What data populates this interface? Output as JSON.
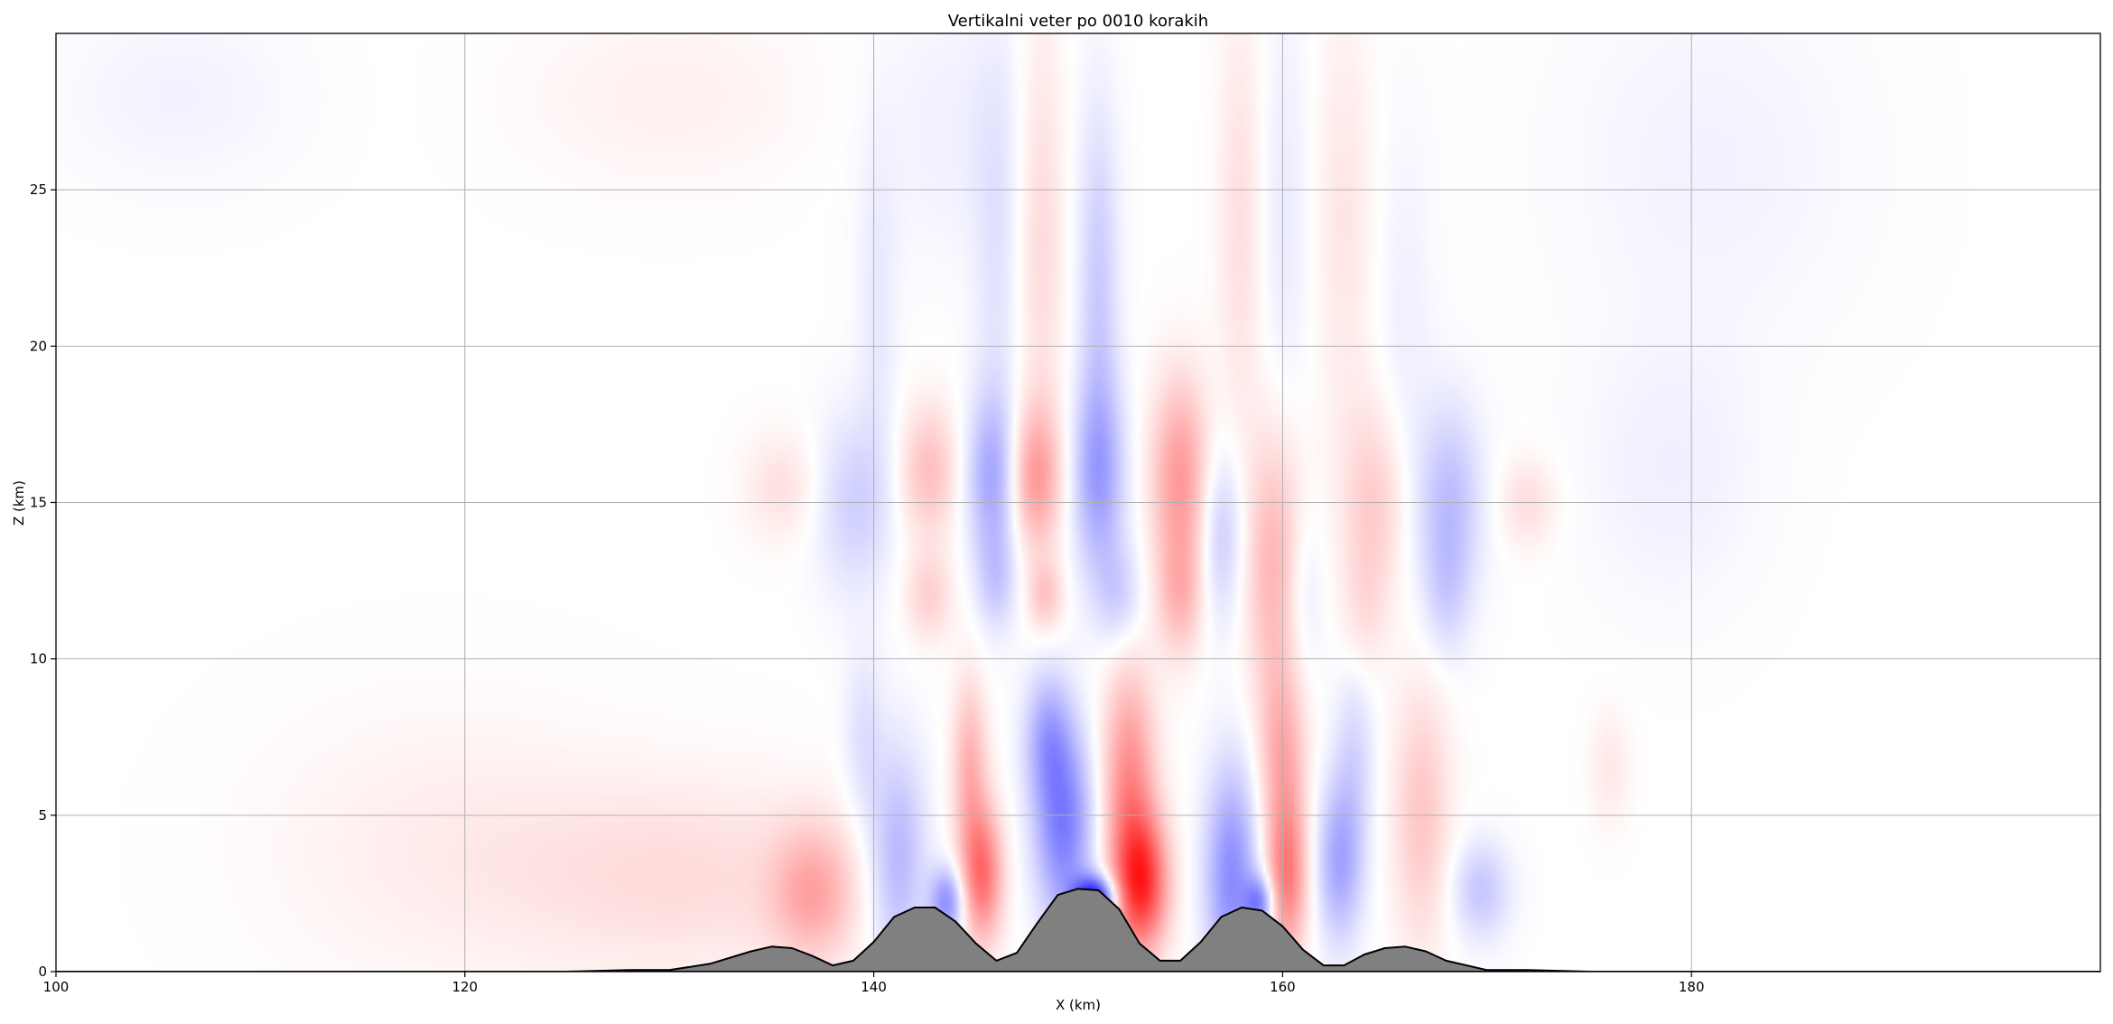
{
  "chart_data": {
    "type": "heatmap",
    "title": "Vertikalni veter po 0010 korakih",
    "xlabel": "X (km)",
    "ylabel": "Z (km)",
    "xlim": [
      100,
      200
    ],
    "ylim": [
      0,
      30
    ],
    "xticks": [
      100,
      120,
      140,
      160,
      180
    ],
    "yticks": [
      0,
      5,
      10,
      15,
      20,
      25
    ],
    "grid": true,
    "colormap": "bwr",
    "colors": {
      "positive": "#ff0000",
      "negative": "#0000ff",
      "neutral": "#ffffff",
      "terrain": "#808080",
      "terrain_edge": "#000000",
      "grid": "#b0b0b0"
    },
    "terrain": {
      "x": [
        100,
        125,
        128,
        130,
        132,
        134,
        135,
        136,
        137,
        138,
        139,
        140,
        141,
        142,
        143,
        144,
        145,
        146,
        147,
        148,
        149,
        150,
        151,
        152,
        153,
        154,
        155,
        156,
        157,
        158,
        159,
        160,
        161,
        162,
        163,
        164,
        165,
        166,
        167,
        168,
        170,
        172,
        175,
        200
      ],
      "z": [
        0,
        0,
        0.05,
        0.05,
        0.25,
        0.65,
        0.8,
        0.75,
        0.5,
        0.2,
        0.35,
        0.95,
        1.75,
        2.05,
        2.05,
        1.6,
        0.9,
        0.35,
        0.6,
        1.55,
        2.45,
        2.65,
        2.6,
        2.0,
        0.9,
        0.35,
        0.35,
        0.95,
        1.75,
        2.05,
        1.95,
        1.45,
        0.7,
        0.2,
        0.2,
        0.55,
        0.75,
        0.8,
        0.65,
        0.35,
        0.05,
        0.05,
        0,
        0
      ]
    },
    "w_field": {
      "units": "relative",
      "features": [
        {
          "x": 150.8,
          "z": 2.3,
          "sx": 0.7,
          "sz": 0.5,
          "w": -0.95
        },
        {
          "x": 153.1,
          "z": 2.8,
          "sx": 0.9,
          "sz": 1.5,
          "w": 0.75
        },
        {
          "x": 152.5,
          "z": 6.0,
          "sx": 0.9,
          "sz": 2.6,
          "w": 0.45
        },
        {
          "x": 149.3,
          "z": 4.6,
          "sx": 1.0,
          "sz": 2.2,
          "w": -0.5
        },
        {
          "x": 148.5,
          "z": 7.5,
          "sx": 0.8,
          "sz": 1.5,
          "w": -0.3
        },
        {
          "x": 145.3,
          "z": 3.1,
          "sx": 0.7,
          "sz": 1.5,
          "w": 0.55
        },
        {
          "x": 144.7,
          "z": 6.5,
          "sx": 0.6,
          "sz": 2.0,
          "w": 0.3
        },
        {
          "x": 143.6,
          "z": 2.2,
          "sx": 0.6,
          "sz": 0.8,
          "w": -0.45
        },
        {
          "x": 141.2,
          "z": 3.6,
          "sx": 1.0,
          "sz": 2.5,
          "w": -0.3
        },
        {
          "x": 137.0,
          "z": 2.5,
          "sx": 1.4,
          "sz": 1.5,
          "w": 0.3
        },
        {
          "x": 131.0,
          "z": 3.0,
          "sx": 6.0,
          "sz": 2.2,
          "w": 0.13
        },
        {
          "x": 119.0,
          "z": 4.0,
          "sx": 6.0,
          "sz": 3.0,
          "w": 0.07
        },
        {
          "x": 157.5,
          "z": 3.0,
          "sx": 0.9,
          "sz": 2.5,
          "w": -0.45
        },
        {
          "x": 158.9,
          "z": 2.2,
          "sx": 0.5,
          "sz": 0.6,
          "w": -0.45
        },
        {
          "x": 160.2,
          "z": 3.0,
          "sx": 0.7,
          "sz": 1.8,
          "w": 0.5
        },
        {
          "x": 160.0,
          "z": 7.0,
          "sx": 0.8,
          "sz": 2.0,
          "w": 0.3
        },
        {
          "x": 162.8,
          "z": 3.5,
          "sx": 0.8,
          "sz": 1.8,
          "w": -0.35
        },
        {
          "x": 163.5,
          "z": 7.0,
          "sx": 0.7,
          "sz": 2.0,
          "w": -0.15
        },
        {
          "x": 166.8,
          "z": 5.0,
          "sx": 1.0,
          "sz": 3.0,
          "w": 0.22
        },
        {
          "x": 169.7,
          "z": 2.6,
          "sx": 1.0,
          "sz": 1.1,
          "w": -0.22
        },
        {
          "x": 176.0,
          "z": 6.5,
          "sx": 0.7,
          "sz": 1.3,
          "w": 0.09
        },
        {
          "x": 139.5,
          "z": 7.5,
          "sx": 0.7,
          "sz": 2.0,
          "w": -0.12
        },
        {
          "x": 147.9,
          "z": 15.8,
          "sx": 0.9,
          "sz": 1.6,
          "w": 0.38
        },
        {
          "x": 148.4,
          "z": 12.0,
          "sx": 0.6,
          "sz": 0.8,
          "w": 0.22
        },
        {
          "x": 145.8,
          "z": 15.8,
          "sx": 0.9,
          "sz": 1.8,
          "w": -0.32
        },
        {
          "x": 146.0,
          "z": 12.5,
          "sx": 0.7,
          "sz": 1.2,
          "w": -0.18
        },
        {
          "x": 151.0,
          "z": 15.8,
          "sx": 0.9,
          "sz": 2.2,
          "w": -0.35
        },
        {
          "x": 151.0,
          "z": 22.0,
          "sx": 0.7,
          "sz": 4.0,
          "w": -0.2
        },
        {
          "x": 152.0,
          "z": 12.0,
          "sx": 0.8,
          "sz": 1.2,
          "w": -0.18
        },
        {
          "x": 155.0,
          "z": 15.8,
          "sx": 1.0,
          "sz": 2.2,
          "w": 0.4
        },
        {
          "x": 155.0,
          "z": 12.0,
          "sx": 0.8,
          "sz": 1.4,
          "w": 0.25
        },
        {
          "x": 157.0,
          "z": 14.0,
          "sx": 0.8,
          "sz": 2.0,
          "w": -0.22
        },
        {
          "x": 159.6,
          "z": 13.0,
          "sx": 1.0,
          "sz": 3.0,
          "w": 0.3
        },
        {
          "x": 161.0,
          "z": 12.0,
          "sx": 0.7,
          "sz": 2.0,
          "w": -0.12
        },
        {
          "x": 164.5,
          "z": 15.0,
          "sx": 1.1,
          "sz": 2.2,
          "w": 0.2
        },
        {
          "x": 164.0,
          "z": 11.5,
          "sx": 0.8,
          "sz": 1.5,
          "w": 0.1
        },
        {
          "x": 168.2,
          "z": 15.0,
          "sx": 1.1,
          "sz": 2.2,
          "w": -0.25
        },
        {
          "x": 168.0,
          "z": 12.0,
          "sx": 0.8,
          "sz": 1.5,
          "w": -0.13
        },
        {
          "x": 142.7,
          "z": 16.0,
          "sx": 1.0,
          "sz": 1.5,
          "w": 0.25
        },
        {
          "x": 142.7,
          "z": 12.0,
          "sx": 0.8,
          "sz": 1.0,
          "w": 0.18
        },
        {
          "x": 139.0,
          "z": 15.0,
          "sx": 1.3,
          "sz": 2.0,
          "w": -0.18
        },
        {
          "x": 135.5,
          "z": 15.5,
          "sx": 1.3,
          "sz": 1.2,
          "w": 0.12
        },
        {
          "x": 172.0,
          "z": 15.0,
          "sx": 1.0,
          "sz": 1.0,
          "w": 0.13
        },
        {
          "x": 179.0,
          "z": 16.0,
          "sx": 3.0,
          "sz": 3.0,
          "w": -0.06
        },
        {
          "x": 148.2,
          "z": 24.0,
          "sx": 0.8,
          "sz": 5.0,
          "w": 0.15
        },
        {
          "x": 146.0,
          "z": 22.0,
          "sx": 0.8,
          "sz": 5.0,
          "w": -0.1
        },
        {
          "x": 158.0,
          "z": 24.0,
          "sx": 0.8,
          "sz": 5.0,
          "w": 0.13
        },
        {
          "x": 160.0,
          "z": 24.0,
          "sx": 1.0,
          "sz": 5.0,
          "w": -0.08
        },
        {
          "x": 163.0,
          "z": 24.0,
          "sx": 1.0,
          "sz": 5.0,
          "w": 0.1
        },
        {
          "x": 166.0,
          "z": 20.0,
          "sx": 1.0,
          "sz": 5.0,
          "w": -0.06
        },
        {
          "x": 140.2,
          "z": 21.0,
          "sx": 0.7,
          "sz": 4.0,
          "w": -0.08
        },
        {
          "x": 130.0,
          "z": 28.0,
          "sx": 5.0,
          "sz": 2.0,
          "w": 0.06
        },
        {
          "x": 106.0,
          "z": 28.0,
          "sx": 4.0,
          "sz": 2.0,
          "w": -0.05
        },
        {
          "x": 144.0,
          "z": 27.0,
          "sx": 3.0,
          "sz": 3.0,
          "w": -0.06
        },
        {
          "x": 181.0,
          "z": 26.0,
          "sx": 5.0,
          "sz": 4.0,
          "w": -0.05
        }
      ]
    }
  }
}
